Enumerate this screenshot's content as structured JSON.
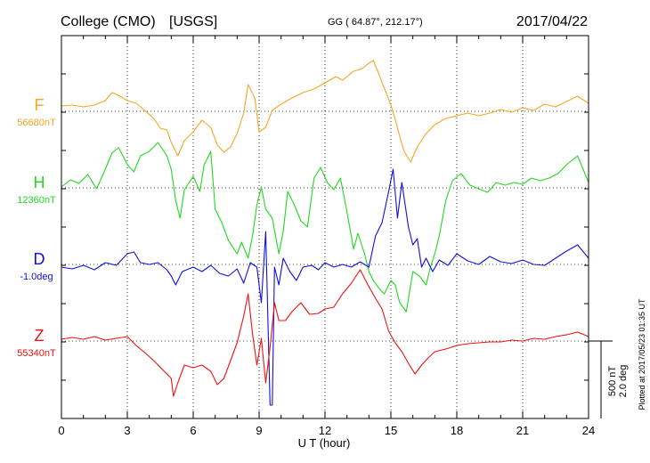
{
  "header": {
    "station": "College (CMO)",
    "source": "[USGS]",
    "coords": "GG ( 64.87°, 212.17°)",
    "date": "2017/04/22"
  },
  "footer": {
    "plotted": "Plotted at 2017/05/23 01:35 UT"
  },
  "scale": {
    "nt": "500 nT",
    "deg": "2.0 deg"
  },
  "chart_data": {
    "type": "line",
    "xlabel": "U T (hour)",
    "xlim": [
      0,
      24
    ],
    "xticks": [
      0,
      3,
      6,
      9,
      12,
      15,
      18,
      21,
      24
    ],
    "grid": "dotted",
    "series": [
      {
        "name": "F",
        "baseline_label": "56680nT",
        "color": "#F5A623",
        "points": [
          [
            0,
            119
          ],
          [
            0.5,
            118
          ],
          [
            1,
            120
          ],
          [
            1.5,
            118
          ],
          [
            2,
            113
          ],
          [
            2.3,
            104
          ],
          [
            2.6,
            107
          ],
          [
            3,
            113
          ],
          [
            3.4,
            116
          ],
          [
            3.8,
            124
          ],
          [
            4.2,
            133
          ],
          [
            4.5,
            144
          ],
          [
            4.8,
            146
          ],
          [
            5,
            160
          ],
          [
            5.3,
            175
          ],
          [
            5.6,
            158
          ],
          [
            6,
            148
          ],
          [
            6.4,
            135
          ],
          [
            6.8,
            143
          ],
          [
            7.1,
            163
          ],
          [
            7.4,
            171
          ],
          [
            7.7,
            165
          ],
          [
            8,
            150
          ],
          [
            8.3,
            127
          ],
          [
            8.5,
            95
          ],
          [
            8.8,
            110
          ],
          [
            9,
            148
          ],
          [
            9.3,
            143
          ],
          [
            9.6,
            124
          ],
          [
            10,
            117
          ],
          [
            10.5,
            110
          ],
          [
            11,
            104
          ],
          [
            11.5,
            100
          ],
          [
            12,
            93
          ],
          [
            12.5,
            86
          ],
          [
            12.8,
            90
          ],
          [
            13.3,
            80
          ],
          [
            13.7,
            77
          ],
          [
            14,
            71
          ],
          [
            14.2,
            68
          ],
          [
            14.4,
            80
          ],
          [
            14.6,
            93
          ],
          [
            14.8,
            105
          ],
          [
            15,
            118
          ],
          [
            15.2,
            134
          ],
          [
            15.4,
            153
          ],
          [
            15.6,
            170
          ],
          [
            15.9,
            182
          ],
          [
            16.2,
            165
          ],
          [
            16.6,
            150
          ],
          [
            17,
            140
          ],
          [
            17.5,
            133
          ],
          [
            18,
            130
          ],
          [
            18.5,
            127
          ],
          [
            19,
            130
          ],
          [
            19.5,
            127
          ],
          [
            20,
            123
          ],
          [
            20.5,
            126
          ],
          [
            21,
            121
          ],
          [
            21.5,
            124
          ],
          [
            22,
            117
          ],
          [
            22.5,
            120
          ],
          [
            23,
            114
          ],
          [
            23.5,
            108
          ],
          [
            24,
            116
          ]
        ]
      },
      {
        "name": "H",
        "baseline_label": "12360nT",
        "color": "#22D822",
        "points": [
          [
            0,
            210
          ],
          [
            0.4,
            202
          ],
          [
            0.8,
            206
          ],
          [
            1.2,
            196
          ],
          [
            1.6,
            212
          ],
          [
            2,
            190
          ],
          [
            2.3,
            172
          ],
          [
            2.6,
            166
          ],
          [
            2.8,
            175
          ],
          [
            3,
            185
          ],
          [
            3.3,
            193
          ],
          [
            3.6,
            175
          ],
          [
            4,
            170
          ],
          [
            4.4,
            160
          ],
          [
            4.8,
            175
          ],
          [
            5,
            190
          ],
          [
            5.2,
            225
          ],
          [
            5.4,
            245
          ],
          [
            5.6,
            213
          ],
          [
            6,
            198
          ],
          [
            6.3,
            215
          ],
          [
            6.5,
            185
          ],
          [
            6.8,
            170
          ],
          [
            7,
            235
          ],
          [
            7.3,
            250
          ],
          [
            7.6,
            270
          ],
          [
            8,
            285
          ],
          [
            8.2,
            272
          ],
          [
            8.5,
            290
          ],
          [
            8.7,
            265
          ],
          [
            8.9,
            230
          ],
          [
            9.1,
            210
          ],
          [
            9.3,
            235
          ],
          [
            9.6,
            245
          ],
          [
            9.9,
            285
          ],
          [
            10.1,
            260
          ],
          [
            10.3,
            215
          ],
          [
            10.6,
            230
          ],
          [
            10.9,
            248
          ],
          [
            11.2,
            255
          ],
          [
            11.5,
            200
          ],
          [
            11.8,
            188
          ],
          [
            12.1,
            205
          ],
          [
            12.4,
            213
          ],
          [
            12.7,
            200
          ],
          [
            13,
            238
          ],
          [
            13.3,
            280
          ],
          [
            13.5,
            262
          ],
          [
            13.8,
            285
          ],
          [
            14,
            305
          ],
          [
            14.2,
            315
          ],
          [
            14.5,
            325
          ],
          [
            14.7,
            330
          ],
          [
            15,
            315
          ],
          [
            15.2,
            320
          ],
          [
            15.4,
            340
          ],
          [
            15.7,
            350
          ],
          [
            16,
            305
          ],
          [
            16.3,
            310
          ],
          [
            16.6,
            320
          ],
          [
            16.8,
            300
          ],
          [
            17,
            285
          ],
          [
            17.2,
            265
          ],
          [
            17.5,
            225
          ],
          [
            17.8,
            203
          ],
          [
            18.2,
            195
          ],
          [
            18.6,
            208
          ],
          [
            19,
            212
          ],
          [
            19.4,
            216
          ],
          [
            19.8,
            205
          ],
          [
            20.2,
            208
          ],
          [
            20.6,
            205
          ],
          [
            21,
            207
          ],
          [
            21.4,
            200
          ],
          [
            21.8,
            203
          ],
          [
            22.2,
            200
          ],
          [
            22.6,
            195
          ],
          [
            23,
            185
          ],
          [
            23.5,
            175
          ],
          [
            24,
            205
          ]
        ]
      },
      {
        "name": "D",
        "baseline_label": "-1.0deg",
        "color": "#1010DD",
        "points": [
          [
            0,
            300
          ],
          [
            0.5,
            302
          ],
          [
            1,
            298
          ],
          [
            1.5,
            303
          ],
          [
            2,
            295
          ],
          [
            2.5,
            298
          ],
          [
            3,
            285
          ],
          [
            3.3,
            283
          ],
          [
            3.6,
            295
          ],
          [
            4,
            297
          ],
          [
            4.4,
            295
          ],
          [
            4.8,
            303
          ],
          [
            5,
            310
          ],
          [
            5.2,
            320
          ],
          [
            5.5,
            305
          ],
          [
            6,
            300
          ],
          [
            6.4,
            305
          ],
          [
            6.8,
            298
          ],
          [
            7.2,
            307
          ],
          [
            7.6,
            310
          ],
          [
            8,
            302
          ],
          [
            8.3,
            318
          ],
          [
            8.6,
            295
          ],
          [
            8.9,
            300
          ],
          [
            9.1,
            340
          ],
          [
            9.3,
            260
          ],
          [
            9.5,
            455
          ],
          [
            9.6,
            455
          ],
          [
            9.7,
            300
          ],
          [
            9.9,
            320
          ],
          [
            10.1,
            290
          ],
          [
            10.4,
            305
          ],
          [
            10.7,
            315
          ],
          [
            11,
            300
          ],
          [
            11.4,
            298
          ],
          [
            11.7,
            303
          ],
          [
            12,
            295
          ],
          [
            12.4,
            300
          ],
          [
            12.8,
            297
          ],
          [
            13.2,
            300
          ],
          [
            13.6,
            294
          ],
          [
            14,
            300
          ],
          [
            14.3,
            265
          ],
          [
            14.6,
            250
          ],
          [
            14.9,
            215
          ],
          [
            15.1,
            190
          ],
          [
            15.3,
            245
          ],
          [
            15.5,
            205
          ],
          [
            15.8,
            255
          ],
          [
            16,
            275
          ],
          [
            16.2,
            268
          ],
          [
            16.4,
            300
          ],
          [
            16.6,
            290
          ],
          [
            16.9,
            305
          ],
          [
            17.2,
            292
          ],
          [
            17.6,
            298
          ],
          [
            18,
            285
          ],
          [
            18.5,
            293
          ],
          [
            19,
            297
          ],
          [
            19.5,
            288
          ],
          [
            20,
            294
          ],
          [
            20.5,
            296
          ],
          [
            21,
            292
          ],
          [
            21.5,
            297
          ],
          [
            22,
            298
          ],
          [
            22.5,
            290
          ],
          [
            23,
            282
          ],
          [
            23.5,
            275
          ],
          [
            24,
            290
          ]
        ]
      },
      {
        "name": "Z",
        "baseline_label": "55340nT",
        "color": "#EE1111",
        "points": [
          [
            0,
            381
          ],
          [
            0.5,
            379
          ],
          [
            1,
            381
          ],
          [
            1.5,
            378
          ],
          [
            2,
            382
          ],
          [
            2.5,
            380
          ],
          [
            3,
            378
          ],
          [
            3.4,
            388
          ],
          [
            3.8,
            396
          ],
          [
            4.2,
            405
          ],
          [
            4.6,
            415
          ],
          [
            5,
            425
          ],
          [
            5.1,
            445
          ],
          [
            5.3,
            430
          ],
          [
            5.6,
            410
          ],
          [
            6,
            413
          ],
          [
            6.4,
            410
          ],
          [
            6.8,
            417
          ],
          [
            7.1,
            432
          ],
          [
            7.4,
            425
          ],
          [
            7.7,
            405
          ],
          [
            8,
            385
          ],
          [
            8.3,
            355
          ],
          [
            8.5,
            330
          ],
          [
            8.7,
            375
          ],
          [
            8.9,
            410
          ],
          [
            9.1,
            380
          ],
          [
            9.3,
            430
          ],
          [
            9.5,
            390
          ],
          [
            9.7,
            340
          ],
          [
            9.9,
            360
          ],
          [
            10.2,
            360
          ],
          [
            10.5,
            350
          ],
          [
            10.9,
            340
          ],
          [
            11.3,
            353
          ],
          [
            11.7,
            352
          ],
          [
            12,
            347
          ],
          [
            12.4,
            345
          ],
          [
            12.8,
            330
          ],
          [
            13.2,
            318
          ],
          [
            13.6,
            303
          ],
          [
            14,
            322
          ],
          [
            14.3,
            335
          ],
          [
            14.6,
            347
          ],
          [
            14.9,
            372
          ],
          [
            15.2,
            385
          ],
          [
            15.5,
            395
          ],
          [
            15.8,
            408
          ],
          [
            16.1,
            420
          ],
          [
            16.4,
            410
          ],
          [
            16.7,
            402
          ],
          [
            17,
            395
          ],
          [
            17.5,
            392
          ],
          [
            18,
            388
          ],
          [
            18.5,
            386
          ],
          [
            19,
            385
          ],
          [
            19.5,
            384
          ],
          [
            20,
            384
          ],
          [
            20.5,
            382
          ],
          [
            21,
            383
          ],
          [
            21.5,
            380
          ],
          [
            22,
            381
          ],
          [
            22.5,
            378
          ],
          [
            23,
            376
          ],
          [
            23.5,
            373
          ],
          [
            24,
            378
          ]
        ]
      }
    ]
  }
}
